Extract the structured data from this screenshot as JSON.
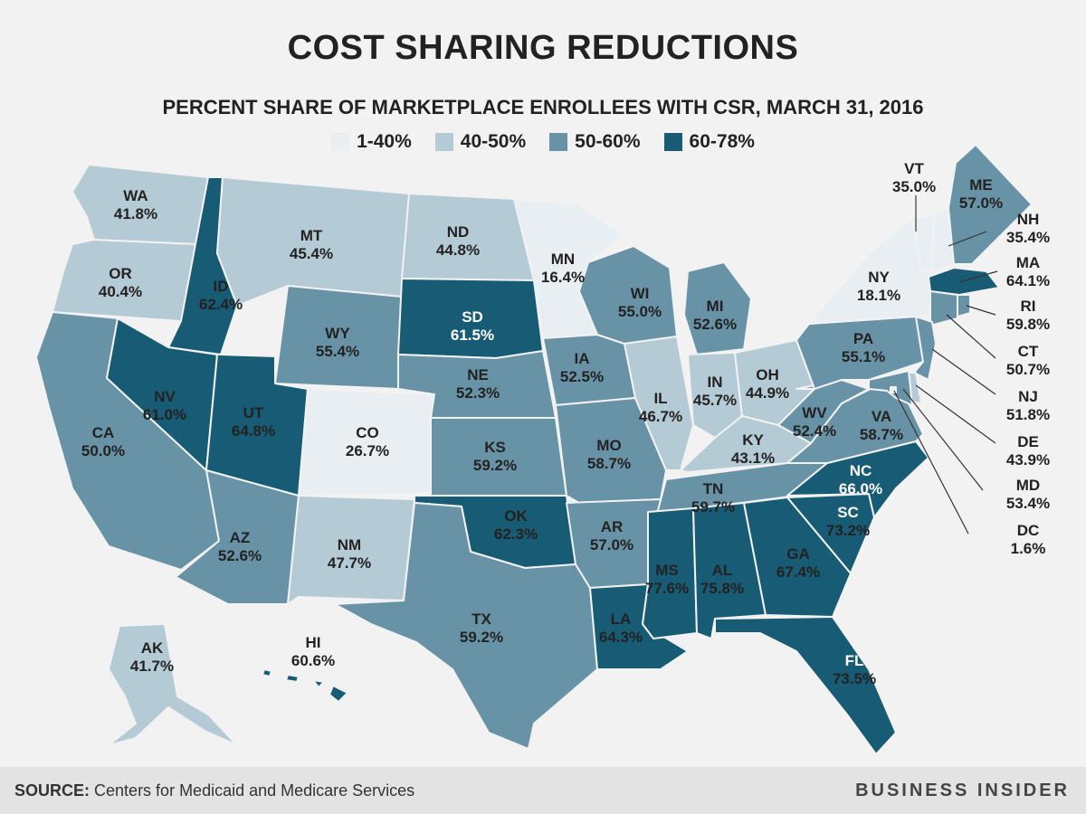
{
  "title": "COST SHARING REDUCTIONS",
  "subtitle": "PERCENT SHARE OF MARKETPLACE ENROLLEES WITH CSR, MARCH 31, 2016",
  "legend": [
    {
      "label": "1-40%",
      "color": "#e8eef2"
    },
    {
      "label": "40-50%",
      "color": "#b4cad4"
    },
    {
      "label": "50-60%",
      "color": "#6893a6"
    },
    {
      "label": "60-78%",
      "color": "#185b74"
    }
  ],
  "footer": {
    "source_label": "SOURCE:",
    "source_text": "Centers for Medicaid and Medicare Services",
    "brand": "BUSINESS INSIDER"
  },
  "chart_data": {
    "type": "choropleth",
    "title": "COST SHARING REDUCTIONS",
    "subtitle": "PERCENT SHARE OF MARKETPLACE ENROLLEES WITH CSR, MARCH 31, 2016",
    "unit": "%",
    "bins": [
      "1-40%",
      "40-50%",
      "50-60%",
      "60-78%"
    ],
    "states": [
      {
        "abbr": "WA",
        "value": "41.8%"
      },
      {
        "abbr": "OR",
        "value": "40.4%"
      },
      {
        "abbr": "CA",
        "value": "50.0%"
      },
      {
        "abbr": "ID",
        "value": "62.4%"
      },
      {
        "abbr": "NV",
        "value": "61.0%"
      },
      {
        "abbr": "MT",
        "value": "45.4%"
      },
      {
        "abbr": "WY",
        "value": "55.4%"
      },
      {
        "abbr": "UT",
        "value": "64.8%"
      },
      {
        "abbr": "AZ",
        "value": "52.6%"
      },
      {
        "abbr": "CO",
        "value": "26.7%"
      },
      {
        "abbr": "NM",
        "value": "47.7%"
      },
      {
        "abbr": "ND",
        "value": "44.8%"
      },
      {
        "abbr": "SD",
        "value": "61.5%"
      },
      {
        "abbr": "NE",
        "value": "52.3%"
      },
      {
        "abbr": "KS",
        "value": "59.2%"
      },
      {
        "abbr": "OK",
        "value": "62.3%"
      },
      {
        "abbr": "TX",
        "value": "59.2%"
      },
      {
        "abbr": "MN",
        "value": "16.4%"
      },
      {
        "abbr": "IA",
        "value": "52.5%"
      },
      {
        "abbr": "MO",
        "value": "58.7%"
      },
      {
        "abbr": "AR",
        "value": "57.0%"
      },
      {
        "abbr": "LA",
        "value": "64.3%"
      },
      {
        "abbr": "WI",
        "value": "55.0%"
      },
      {
        "abbr": "IL",
        "value": "46.7%"
      },
      {
        "abbr": "MI",
        "value": "52.6%"
      },
      {
        "abbr": "IN",
        "value": "45.7%"
      },
      {
        "abbr": "OH",
        "value": "44.9%"
      },
      {
        "abbr": "KY",
        "value": "43.1%"
      },
      {
        "abbr": "TN",
        "value": "59.7%"
      },
      {
        "abbr": "MS",
        "value": "77.6%"
      },
      {
        "abbr": "AL",
        "value": "75.8%"
      },
      {
        "abbr": "GA",
        "value": "67.4%"
      },
      {
        "abbr": "FL",
        "value": "73.5%"
      },
      {
        "abbr": "SC",
        "value": "73.2%"
      },
      {
        "abbr": "NC",
        "value": "66.0%"
      },
      {
        "abbr": "VA",
        "value": "58.7%"
      },
      {
        "abbr": "WV",
        "value": "52.4%"
      },
      {
        "abbr": "PA",
        "value": "55.1%"
      },
      {
        "abbr": "NY",
        "value": "18.1%"
      },
      {
        "abbr": "VT",
        "value": "35.0%"
      },
      {
        "abbr": "NH",
        "value": "35.4%"
      },
      {
        "abbr": "ME",
        "value": "57.0%"
      },
      {
        "abbr": "MA",
        "value": "64.1%"
      },
      {
        "abbr": "RI",
        "value": "59.8%"
      },
      {
        "abbr": "CT",
        "value": "50.7%"
      },
      {
        "abbr": "NJ",
        "value": "51.8%"
      },
      {
        "abbr": "DE",
        "value": "43.9%"
      },
      {
        "abbr": "MD",
        "value": "53.4%"
      },
      {
        "abbr": "DC",
        "value": "1.6%"
      },
      {
        "abbr": "AK",
        "value": "41.7%"
      },
      {
        "abbr": "HI",
        "value": "60.6%"
      }
    ]
  }
}
